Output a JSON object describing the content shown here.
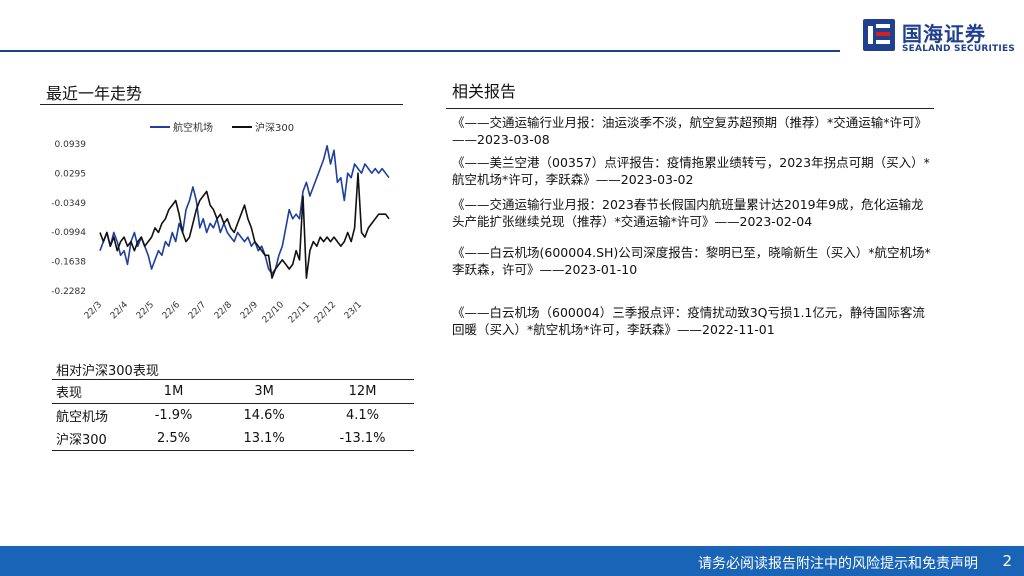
{
  "header": {
    "logo_cn": "国海证券",
    "logo_en": "SEALAND SECURITIES"
  },
  "left": {
    "title": "最近一年走势",
    "table_title": "相对沪深300表现",
    "table": {
      "headers": [
        "表现",
        "1M",
        "3M",
        "12M"
      ],
      "rows": [
        [
          "航空机场",
          "-1.9%",
          "14.6%",
          "4.1%"
        ],
        [
          "沪深300",
          "2.5%",
          "13.1%",
          "-13.1%"
        ]
      ]
    }
  },
  "right": {
    "title": "相关报告",
    "reports": [
      "《——交通运输行业月报：油运淡季不淡，航空复苏超预期（推荐）*交通运输*许可》——2023-03-08",
      "《——美兰空港（00357）点评报告：疫情拖累业绩转亏，2023年拐点可期（买入）*航空机场*许可，李跃森》——2023-03-02",
      "《——交通运输行业月报：2023春节长假国内航班量累计达2019年9成，危化运输龙头产能扩张继续兑现（推荐）*交通运输*许可》——2023-02-04",
      "《——白云机场(600004.SH)公司深度报告：黎明已至，晓喻新生（买入）*航空机场*李跃森，许可》——2023-01-10",
      "《——白云机场（600004）三季报点评：疫情扰动致3Q亏损1.1亿元，静待国际客流回暖（买入）*航空机场*许可，李跃森》——2022-11-01"
    ]
  },
  "chart_data": {
    "type": "line",
    "x_ticks": [
      "22/3",
      "22/4",
      "22/5",
      "22/6",
      "22/7",
      "22/8",
      "22/9",
      "22/10",
      "22/11",
      "22/12",
      "23/1"
    ],
    "y_ticks": [
      "0.0939",
      "0.0295",
      "-0.0349",
      "-0.0994",
      "-0.1638",
      "-0.2282"
    ],
    "ylim": [
      -0.2282,
      0.0939
    ],
    "legend_position": "top",
    "series": [
      {
        "name": "航空机场",
        "color": "#1f3f9f",
        "values": [
          -0.14,
          -0.12,
          -0.1,
          -0.13,
          -0.1,
          -0.12,
          -0.15,
          -0.14,
          -0.17,
          -0.12,
          -0.1,
          -0.13,
          -0.11,
          -0.13,
          -0.15,
          -0.18,
          -0.16,
          -0.14,
          -0.15,
          -0.12,
          -0.13,
          -0.1,
          -0.12,
          -0.08,
          -0.1,
          -0.05,
          -0.03,
          0.0,
          -0.03,
          -0.09,
          -0.07,
          -0.1,
          -0.08,
          -0.09,
          -0.07,
          -0.1,
          -0.08,
          -0.1,
          -0.11,
          -0.12,
          -0.1,
          -0.11,
          -0.12,
          -0.11,
          -0.13,
          -0.12,
          -0.14,
          -0.13,
          -0.15,
          -0.18,
          -0.19,
          -0.18,
          -0.15,
          -0.13,
          -0.09,
          -0.05,
          -0.07,
          -0.06,
          -0.07,
          -0.01,
          0.01,
          -0.02,
          0.0,
          0.02,
          0.04,
          0.06,
          0.09,
          0.05,
          0.08,
          0.01,
          0.02,
          -0.03,
          0.03,
          0.02,
          0.05,
          0.04,
          0.03,
          0.05,
          0.04,
          0.03,
          0.04,
          0.03,
          0.04,
          0.03,
          0.02
        ]
      },
      {
        "name": "沪深300",
        "color": "#111111",
        "values": [
          -0.1,
          -0.12,
          -0.1,
          -0.13,
          -0.11,
          -0.14,
          -0.12,
          -0.11,
          -0.13,
          -0.12,
          -0.14,
          -0.12,
          -0.11,
          -0.13,
          -0.12,
          -0.11,
          -0.09,
          -0.1,
          -0.08,
          -0.07,
          -0.05,
          -0.04,
          -0.03,
          -0.06,
          -0.1,
          -0.12,
          -0.11,
          -0.08,
          -0.05,
          -0.03,
          -0.02,
          -0.01,
          -0.04,
          -0.05,
          -0.07,
          -0.06,
          -0.08,
          -0.07,
          -0.09,
          -0.1,
          -0.08,
          -0.06,
          -0.04,
          -0.07,
          -0.09,
          -0.12,
          -0.13,
          -0.14,
          -0.15,
          -0.15,
          -0.2,
          -0.18,
          -0.17,
          -0.16,
          -0.17,
          -0.18,
          -0.17,
          -0.14,
          -0.16,
          -0.02,
          -0.2,
          -0.14,
          -0.12,
          -0.13,
          -0.11,
          -0.12,
          -0.11,
          -0.12,
          -0.11,
          -0.12,
          -0.13,
          -0.12,
          -0.1,
          -0.12,
          -0.09,
          0.03,
          -0.1,
          -0.11,
          -0.09,
          -0.08,
          -0.07,
          -0.06,
          -0.06,
          -0.06,
          -0.07
        ]
      }
    ]
  }
}
